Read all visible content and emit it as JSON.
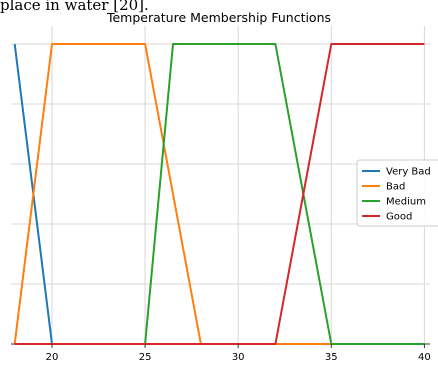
{
  "page": {
    "top_fragment": "place in water [20]."
  },
  "chart_data": {
    "type": "line",
    "title": "Temperature Membership Functions",
    "xlabel": "",
    "ylabel": "",
    "xlim": [
      17.8,
      40.3
    ],
    "ylim": [
      0,
      1.0
    ],
    "x_ticks": [
      20,
      25,
      30,
      35,
      40
    ],
    "y_ticks": [
      0,
      0.2,
      0.4,
      0.6,
      0.8,
      1.0
    ],
    "grid": true,
    "legend_placement": "right",
    "series": [
      {
        "name": "Very Bad",
        "color": "#1f77b4",
        "x": [
          18,
          20,
          40
        ],
        "y": [
          1,
          0,
          0
        ]
      },
      {
        "name": "Bad",
        "color": "#ff7f0e",
        "x": [
          18,
          20,
          25,
          28,
          40
        ],
        "y": [
          0,
          1,
          1,
          0,
          0
        ]
      },
      {
        "name": "Medium",
        "color": "#2ca02c",
        "x": [
          18,
          25,
          26.5,
          32,
          35,
          40
        ],
        "y": [
          0,
          0,
          1,
          1,
          0,
          0
        ]
      },
      {
        "name": "Good",
        "color": "#d62728",
        "x": [
          18,
          32,
          35,
          40
        ],
        "y": [
          0,
          0,
          1,
          1
        ]
      }
    ]
  }
}
